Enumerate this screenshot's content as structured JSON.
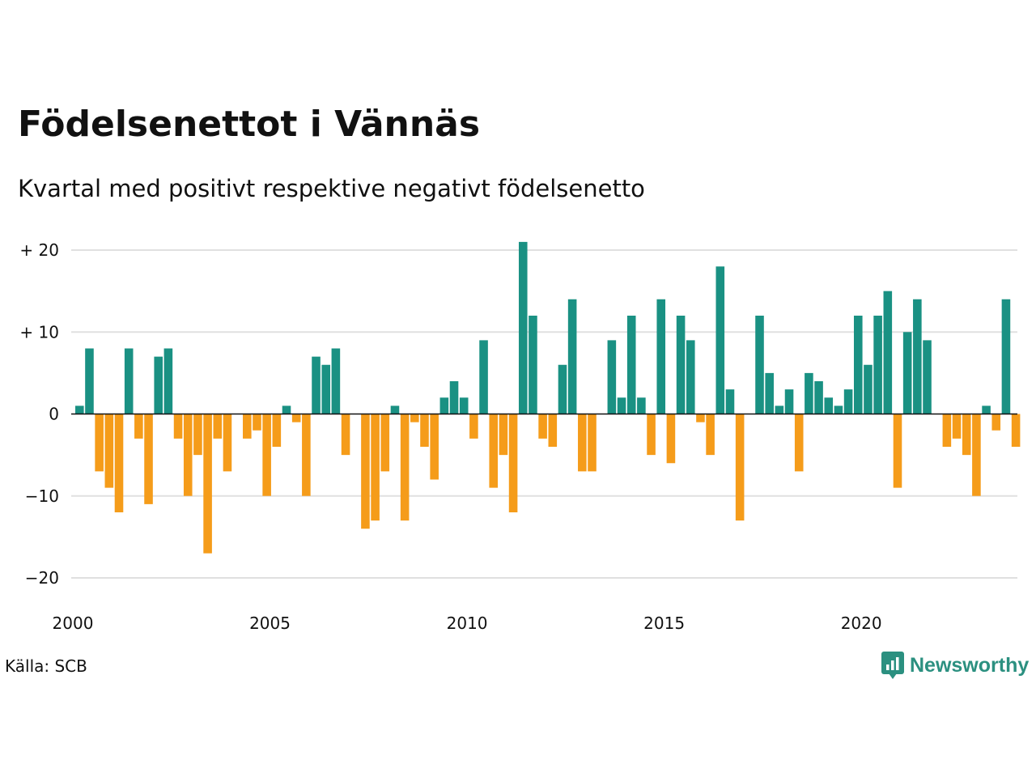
{
  "title": "Födelsenettot i Vännäs",
  "subtitle": "Kvartal med positivt respektive negativt födelsenetto",
  "source": "Källa: SCB",
  "brand": "Newsworthy",
  "colors": {
    "positive": "#1a9183",
    "negative": "#f59c1a",
    "grid": "#e0e0e0",
    "zero": "#111111"
  },
  "chart_data": {
    "type": "bar",
    "xlabel": "",
    "ylabel": "",
    "ylim": [
      -20,
      20
    ],
    "y_ticks": [
      {
        "value": 20,
        "label": "+ 20"
      },
      {
        "value": 10,
        "label": "+ 10"
      },
      {
        "value": 0,
        "label": "0"
      },
      {
        "value": -10,
        "label": "−10"
      },
      {
        "value": -20,
        "label": "−20"
      }
    ],
    "x_ticks": [
      "2000",
      "2005",
      "2010",
      "2015",
      "2020"
    ],
    "start_year": 2000,
    "grid": true,
    "legend": "none",
    "quarterly_values": [
      1,
      8,
      -7,
      -9,
      -12,
      8,
      -3,
      -11,
      7,
      8,
      -3,
      -10,
      -5,
      -17,
      -3,
      -7,
      0,
      -3,
      -2,
      -10,
      -4,
      1,
      -1,
      -10,
      7,
      6,
      8,
      -5,
      0,
      -14,
      -13,
      -7,
      1,
      -13,
      -1,
      -4,
      -8,
      2,
      4,
      2,
      -3,
      9,
      -9,
      -5,
      -12,
      21,
      12,
      -3,
      -4,
      6,
      14,
      -7,
      -7,
      0,
      9,
      2,
      12,
      2,
      -5,
      14,
      -6,
      12,
      9,
      -1,
      -5,
      18,
      3,
      -13,
      0,
      12,
      5,
      1,
      3,
      -7,
      5,
      4,
      2,
      1,
      3,
      12,
      6,
      12,
      15,
      -9,
      10,
      14,
      9,
      0,
      -4,
      -3,
      -5,
      -10,
      1,
      -2,
      14,
      -4
    ]
  }
}
